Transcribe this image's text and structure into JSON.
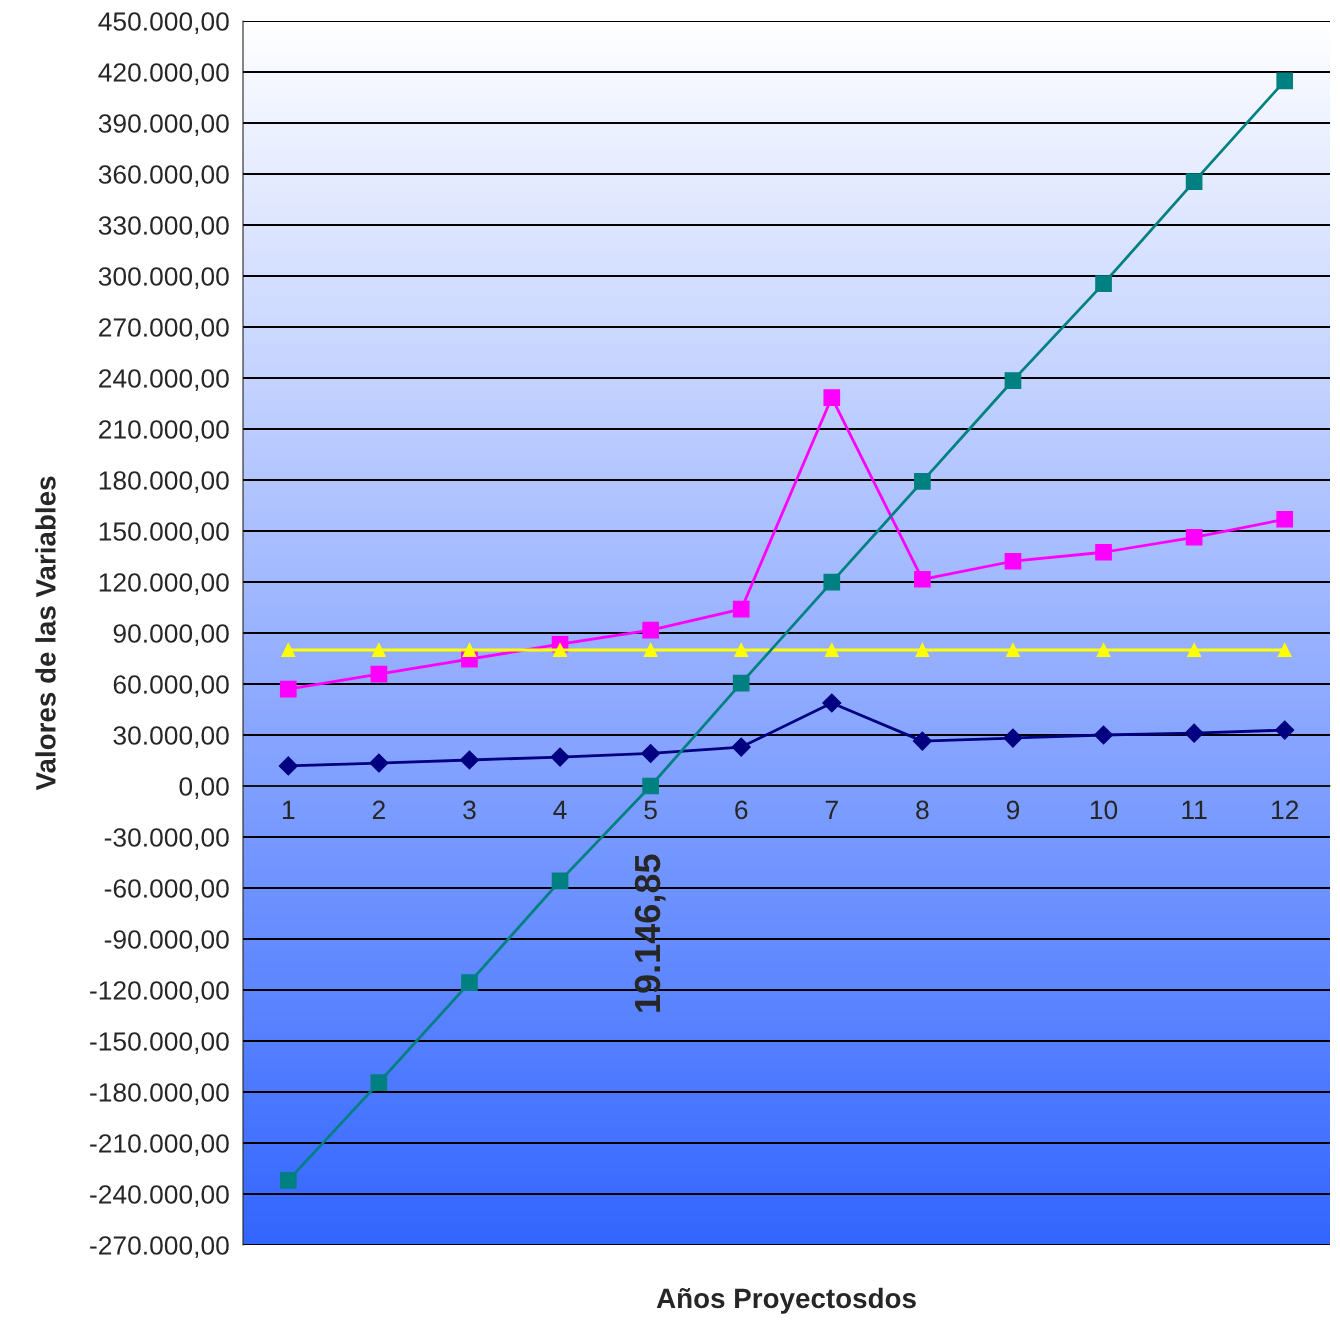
{
  "chart_data": {
    "type": "line",
    "xlabel": "Años Proyectosdos",
    "ylabel": "Valores de las Variables",
    "categories": [
      "1",
      "2",
      "3",
      "4",
      "5",
      "6",
      "7",
      "8",
      "9",
      "10",
      "11",
      "12"
    ],
    "series": [
      {
        "color": "#000080",
        "marker": "diamond",
        "values": [
          11800,
          13500,
          15300,
          17000,
          19146.85,
          22900,
          48800,
          26400,
          28200,
          30000,
          31100,
          32900
        ]
      },
      {
        "color": "#ff00ff",
        "marker": "square",
        "values": [
          57000,
          65800,
          74600,
          83400,
          91700,
          104000,
          228500,
          121600,
          132200,
          137500,
          146300,
          156900
        ]
      },
      {
        "color": "#ffff00",
        "marker": "triangle",
        "values": [
          80000,
          80000,
          80000,
          80000,
          80000,
          80000,
          80000,
          80000,
          80000,
          80000,
          80000,
          80000
        ]
      },
      {
        "color": "#008080",
        "marker": "square",
        "values": [
          -232000,
          -174500,
          -115700,
          -55800,
          0,
          60500,
          119900,
          179200,
          238500,
          295500,
          355500,
          414800
        ]
      }
    ],
    "annotations": [
      {
        "text": "19.146,85",
        "x": "5",
        "y": 19146.85
      }
    ],
    "ylim": [
      -270000,
      450000
    ],
    "yticks": [
      {
        "value": -270000,
        "label": "-270.000,00"
      },
      {
        "value": -240000,
        "label": "-240.000,00"
      },
      {
        "value": -210000,
        "label": "-210.000,00"
      },
      {
        "value": -180000,
        "label": "-180.000,00"
      },
      {
        "value": -150000,
        "label": "-150.000,00"
      },
      {
        "value": -120000,
        "label": "-120.000,00"
      },
      {
        "value": -90000,
        "label": "-90.000,00"
      },
      {
        "value": -60000,
        "label": "-60.000,00"
      },
      {
        "value": -30000,
        "label": "-30.000,00"
      },
      {
        "value": 0,
        "label": "0,00"
      },
      {
        "value": 30000,
        "label": "30.000,00"
      },
      {
        "value": 60000,
        "label": "60.000,00"
      },
      {
        "value": 90000,
        "label": "90.000,00"
      },
      {
        "value": 120000,
        "label": "120.000,00"
      },
      {
        "value": 150000,
        "label": "150.000,00"
      },
      {
        "value": 180000,
        "label": "180.000,00"
      },
      {
        "value": 210000,
        "label": "210.000,00"
      },
      {
        "value": 240000,
        "label": "240.000,00"
      },
      {
        "value": 270000,
        "label": "270.000,00"
      },
      {
        "value": 300000,
        "label": "300.000,00"
      },
      {
        "value": 330000,
        "label": "330.000,00"
      },
      {
        "value": 360000,
        "label": "360.000,00"
      },
      {
        "value": 390000,
        "label": "390.000,00"
      },
      {
        "value": 420000,
        "label": "420.000,00"
      },
      {
        "value": 450000,
        "label": "450.000,00"
      }
    ],
    "grid": "y"
  }
}
